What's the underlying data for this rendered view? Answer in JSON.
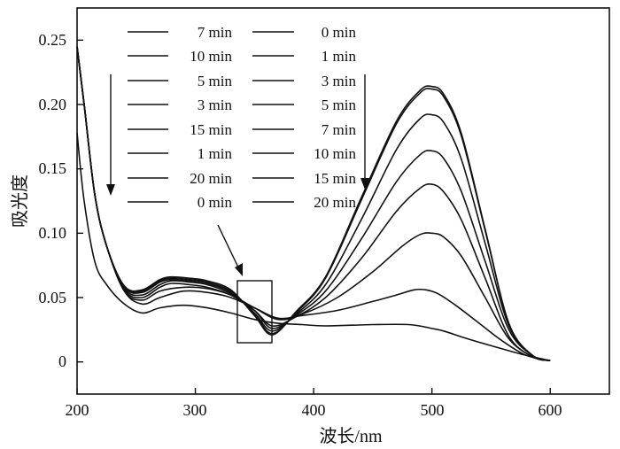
{
  "chart_data": {
    "type": "line",
    "title": "",
    "xlabel": "波长/nm",
    "ylabel": "吸光度",
    "xlim": [
      200,
      650
    ],
    "ylim": [
      -0.025,
      0.275
    ],
    "x_ticks": [
      "200",
      "300",
      "400",
      "500",
      "600"
    ],
    "y_ticks": [
      "0",
      "0.05",
      "0.10",
      "0.15",
      "0.20",
      "0.25"
    ],
    "legend_left": [
      "7 min",
      "10 min",
      "5 min",
      "3 min",
      "15 min",
      "1 min",
      "20 min",
      "0 min"
    ],
    "legend_right": [
      "0 min",
      "1 min",
      "3 min",
      "5 min",
      "7 min",
      "10 min",
      "15 min",
      "20 min"
    ],
    "series": [
      {
        "name": "0 min",
        "x": [
          200,
          206,
          215,
          225,
          240,
          255,
          270,
          290,
          310,
          330,
          350,
          370,
          390,
          410,
          450,
          480,
          495,
          500,
          510,
          530,
          560,
          580,
          600
        ],
        "y": [
          0.178,
          0.125,
          0.078,
          0.06,
          0.045,
          0.038,
          0.042,
          0.044,
          0.042,
          0.038,
          0.033,
          0.03,
          0.029,
          0.028,
          0.029,
          0.029,
          0.027,
          0.026,
          0.024,
          0.018,
          0.01,
          0.005,
          0.001
        ]
      },
      {
        "name": "1 min",
        "x": [
          200,
          206,
          215,
          225,
          240,
          255,
          270,
          290,
          310,
          330,
          350,
          370,
          390,
          420,
          450,
          470,
          485,
          495,
          505,
          520,
          540,
          560,
          580,
          600
        ],
        "y": [
          0.245,
          0.2,
          0.13,
          0.09,
          0.055,
          0.045,
          0.05,
          0.055,
          0.054,
          0.05,
          0.042,
          0.034,
          0.036,
          0.04,
          0.047,
          0.052,
          0.056,
          0.056,
          0.053,
          0.044,
          0.03,
          0.016,
          0.005,
          0.001
        ]
      },
      {
        "name": "3 min",
        "x": [
          200,
          206,
          215,
          225,
          240,
          255,
          270,
          290,
          310,
          330,
          350,
          370,
          390,
          420,
          450,
          475,
          490,
          500,
          510,
          525,
          545,
          565,
          585,
          600
        ],
        "y": [
          0.245,
          0.2,
          0.13,
          0.09,
          0.055,
          0.048,
          0.055,
          0.058,
          0.057,
          0.052,
          0.042,
          0.033,
          0.037,
          0.05,
          0.07,
          0.09,
          0.099,
          0.1,
          0.097,
          0.082,
          0.05,
          0.018,
          0.004,
          0.001
        ]
      },
      {
        "name": "5 min",
        "x": [
          200,
          206,
          215,
          225,
          240,
          255,
          270,
          280,
          295,
          310,
          330,
          350,
          365,
          385,
          410,
          440,
          470,
          490,
          500,
          510,
          525,
          545,
          565,
          585,
          600
        ],
        "y": [
          0.245,
          0.2,
          0.13,
          0.09,
          0.056,
          0.05,
          0.058,
          0.061,
          0.06,
          0.058,
          0.052,
          0.04,
          0.028,
          0.035,
          0.05,
          0.08,
          0.117,
          0.135,
          0.138,
          0.132,
          0.11,
          0.065,
          0.02,
          0.004,
          0.001
        ]
      },
      {
        "name": "7 min",
        "x": [
          200,
          206,
          215,
          225,
          240,
          255,
          270,
          280,
          295,
          310,
          330,
          350,
          365,
          385,
          410,
          440,
          470,
          490,
          500,
          510,
          525,
          545,
          565,
          585,
          600
        ],
        "y": [
          0.245,
          0.2,
          0.13,
          0.09,
          0.057,
          0.052,
          0.06,
          0.063,
          0.062,
          0.06,
          0.053,
          0.04,
          0.026,
          0.036,
          0.055,
          0.095,
          0.14,
          0.161,
          0.164,
          0.158,
          0.132,
          0.078,
          0.025,
          0.005,
          0.001
        ]
      },
      {
        "name": "10 min",
        "x": [
          200,
          206,
          215,
          225,
          240,
          255,
          270,
          280,
          295,
          310,
          330,
          350,
          365,
          385,
          410,
          440,
          470,
          490,
          500,
          510,
          525,
          545,
          565,
          585,
          600
        ],
        "y": [
          0.245,
          0.2,
          0.13,
          0.09,
          0.058,
          0.054,
          0.062,
          0.064,
          0.063,
          0.061,
          0.054,
          0.038,
          0.024,
          0.037,
          0.06,
          0.11,
          0.165,
          0.189,
          0.192,
          0.186,
          0.157,
          0.092,
          0.028,
          0.005,
          0.001
        ]
      },
      {
        "name": "15 min",
        "x": [
          200,
          206,
          215,
          225,
          240,
          255,
          270,
          280,
          295,
          310,
          330,
          350,
          365,
          385,
          410,
          440,
          470,
          490,
          500,
          510,
          525,
          545,
          565,
          585,
          600
        ],
        "y": [
          0.245,
          0.2,
          0.13,
          0.09,
          0.058,
          0.055,
          0.063,
          0.065,
          0.064,
          0.062,
          0.055,
          0.037,
          0.022,
          0.038,
          0.065,
          0.125,
          0.185,
          0.209,
          0.212,
          0.206,
          0.175,
          0.102,
          0.03,
          0.005,
          0.001
        ]
      },
      {
        "name": "20 min",
        "x": [
          200,
          206,
          215,
          225,
          240,
          255,
          270,
          280,
          295,
          310,
          330,
          350,
          365,
          385,
          410,
          440,
          470,
          490,
          500,
          510,
          525,
          545,
          565,
          585,
          600
        ],
        "y": [
          0.245,
          0.2,
          0.13,
          0.09,
          0.059,
          0.056,
          0.064,
          0.066,
          0.065,
          0.063,
          0.056,
          0.036,
          0.021,
          0.039,
          0.066,
          0.127,
          0.187,
          0.211,
          0.214,
          0.208,
          0.177,
          0.103,
          0.03,
          0.005,
          0.001
        ]
      }
    ]
  }
}
